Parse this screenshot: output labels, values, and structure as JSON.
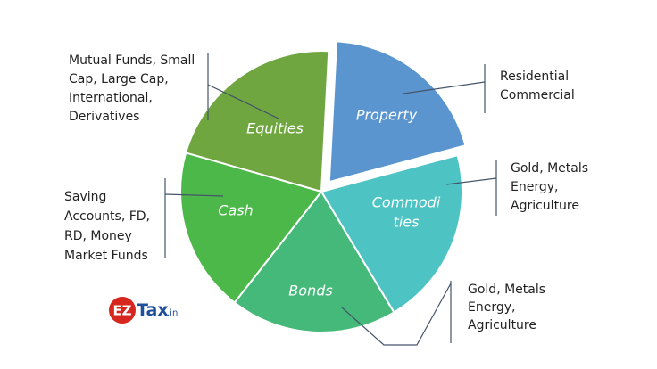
{
  "slices": [
    {
      "label": [
        "Equities"
      ],
      "callout": [
        "Mutual Funds, Small",
        "Cap, Large Cap,",
        "International,",
        "Derivatives"
      ]
    },
    {
      "label": [
        "Property"
      ],
      "callout": [
        "Residential",
        "Commercial"
      ]
    },
    {
      "label": [
        "Commodi",
        "ties"
      ],
      "callout": [
        "Gold, Metals",
        "Energy,",
        "Agriculture"
      ]
    },
    {
      "label": [
        "Bonds"
      ],
      "callout": [
        "Gold, Metals",
        "Energy,",
        "Agriculture"
      ]
    },
    {
      "label": [
        "Cash"
      ],
      "callout": [
        "Saving",
        "Accounts, FD,",
        "RD, Money",
        "Market Funds"
      ]
    }
  ],
  "logo": {
    "mark": "EZ",
    "name": "Tax",
    "suffix": ".in"
  }
}
